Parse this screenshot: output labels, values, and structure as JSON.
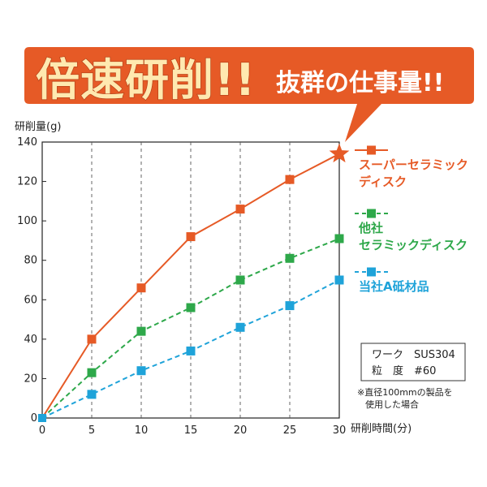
{
  "banner": {
    "title": "倍速研削!!",
    "subtitle": "抜群の仕事量!!"
  },
  "chart_data": {
    "type": "line",
    "ylabel": "研削量(g)",
    "xlabel": "研削時間(分)",
    "xlim": [
      0,
      30
    ],
    "ylim": [
      0,
      140
    ],
    "x_ticks": [
      "0",
      "5",
      "10",
      "15",
      "20",
      "25",
      "30"
    ],
    "y_ticks": [
      "0",
      "20",
      "40",
      "60",
      "80",
      "100",
      "120",
      "140"
    ],
    "x": [
      0,
      5,
      10,
      15,
      20,
      25,
      30
    ],
    "grid": "vertical-dashed",
    "series": [
      {
        "name_lines": [
          "スーパーセラミック",
          "ディスク"
        ],
        "color": "#e65a26",
        "style": "solid",
        "values": [
          0,
          40,
          66,
          92,
          106,
          121,
          134
        ]
      },
      {
        "name_lines": [
          "他社",
          "セラミックディスク"
        ],
        "color": "#2ea84a",
        "style": "dashed",
        "values": [
          0,
          23,
          44,
          56,
          70,
          81,
          91
        ]
      },
      {
        "name_lines": [
          "当社A砥材品"
        ],
        "color": "#1fa3d9",
        "style": "dashed",
        "values": [
          0,
          12,
          24,
          34,
          46,
          57,
          70
        ]
      }
    ]
  },
  "info_box": {
    "line1": "ワーク　SUS304",
    "line2": "粒　度　#60"
  },
  "note": {
    "line1": "※直径100mmの製品を",
    "line2": "使用した場合"
  }
}
